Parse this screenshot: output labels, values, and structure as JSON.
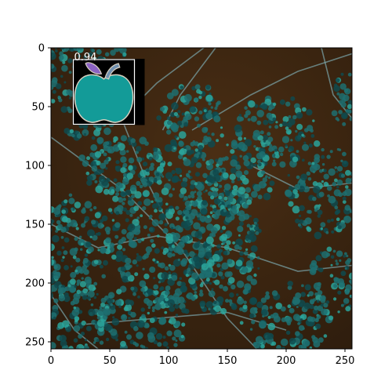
{
  "plot": {
    "x_range": [
      0,
      256
    ],
    "y_range": [
      0,
      256
    ],
    "y_inverted": true,
    "x_ticks": [
      0,
      50,
      100,
      150,
      200,
      250
    ],
    "y_ticks": [
      0,
      50,
      100,
      150,
      200,
      250
    ],
    "x_tick_labels": [
      "0",
      "50",
      "100",
      "150",
      "200",
      "250"
    ],
    "y_tick_labels": [
      "0",
      "50",
      "100",
      "150",
      "200",
      "250"
    ]
  },
  "image": {
    "description_colors": {
      "background": "#3a2410",
      "foliage": "#1d6f70",
      "branches": "#7fb0b8"
    }
  },
  "detection": {
    "score_label": "0.94",
    "box": {
      "x0": 19,
      "y0": 10,
      "x1": 71,
      "y1": 65
    },
    "box_color": "#ffffff",
    "icon": "apple-icon",
    "icon_colors": {
      "body": "#139b98",
      "leaf": "#8b62c2",
      "stem": "#6f8fae",
      "backdrop": "#000000"
    }
  }
}
